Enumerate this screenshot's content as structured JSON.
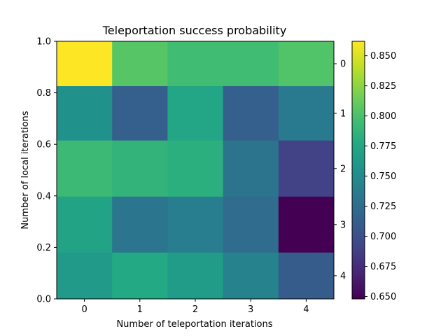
{
  "chart_data": {
    "type": "heatmap",
    "title": "Teleportation success probability",
    "xlabel": "Number of teleportation iterations",
    "ylabel": "Number of local iterations",
    "x_tick_labels": [
      "0",
      "1",
      "2",
      "3",
      "4"
    ],
    "y_tick_labels": [
      "0.0",
      "0.2",
      "0.4",
      "0.6",
      "0.8",
      "1.0"
    ],
    "right_tick_labels": [
      "0",
      "1",
      "2",
      "3",
      "4"
    ],
    "xlim": [
      -0.5,
      4.5
    ],
    "ylim": [
      0.0,
      1.0
    ],
    "row_edges": [
      1.0,
      0.826,
      0.615,
      0.397,
      0.18,
      0.0
    ],
    "values": [
      [
        0.862,
        0.805,
        0.795,
        0.795,
        0.803
      ],
      [
        0.755,
        0.713,
        0.775,
        0.712,
        0.735
      ],
      [
        0.792,
        0.787,
        0.783,
        0.73,
        0.69
      ],
      [
        0.772,
        0.732,
        0.738,
        0.723,
        0.648
      ],
      [
        0.763,
        0.777,
        0.765,
        0.742,
        0.71
      ]
    ],
    "colormap": "viridis",
    "vmin": 0.648,
    "vmax": 0.862,
    "colorbar_ticks": [
      0.65,
      0.675,
      0.7,
      0.725,
      0.75,
      0.775,
      0.8,
      0.825,
      0.85
    ],
    "colorbar_tick_labels": [
      "0.650",
      "0.675",
      "0.700",
      "0.725",
      "0.750",
      "0.775",
      "0.800",
      "0.825",
      "0.850"
    ],
    "grid": false
  }
}
